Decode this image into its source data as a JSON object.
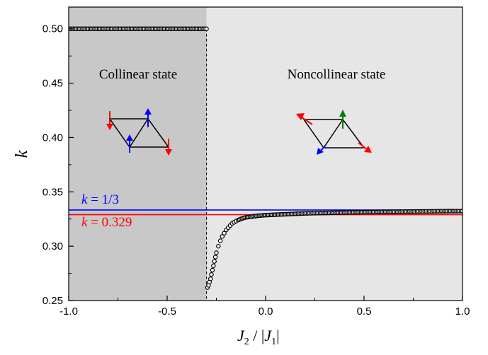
{
  "chart_data": {
    "type": "scatter",
    "title": "",
    "xlabel_main": "J",
    "xlabel_sub2": "2",
    "xlabel_mid": " / |",
    "xlabel_main2": "J",
    "xlabel_sub1": "1",
    "xlabel_end": "|",
    "ylabel": "k",
    "xlim": [
      -1.0,
      1.0
    ],
    "ylim": [
      0.25,
      0.52
    ],
    "xticks": [
      -1.0,
      -0.5,
      0.0,
      0.5,
      1.0
    ],
    "xtick_labels": [
      "-1.0",
      "-0.5",
      "0.0",
      "0.5",
      "1.0"
    ],
    "yticks": [
      0.25,
      0.3,
      0.35,
      0.4,
      0.45,
      0.5
    ],
    "ytick_labels": [
      "0.25",
      "0.30",
      "0.35",
      "0.40",
      "0.45",
      "0.50"
    ],
    "transition_x": -0.3,
    "regions": [
      {
        "label": "Collinear state",
        "x_from": -1.0,
        "x_to": -0.3,
        "color": "#c8c8c8"
      },
      {
        "label": "Noncollinear state",
        "x_from": -0.3,
        "x_to": 1.0,
        "color": "#e6e6e6"
      }
    ],
    "reference_lines": [
      {
        "label_k": "k",
        "label_rest": " = 1/3",
        "y": 0.3333,
        "color": "#0000ff"
      },
      {
        "label_k": "k",
        "label_rest": " = 0.329",
        "y": 0.329,
        "color": "#ff0000"
      }
    ],
    "series": [
      {
        "points": [
          [
            -1.0,
            0.5
          ],
          [
            -0.9,
            0.5
          ],
          [
            -0.8,
            0.5
          ],
          [
            -0.7,
            0.5
          ],
          [
            -0.6,
            0.5
          ],
          [
            -0.5,
            0.5
          ],
          [
            -0.4,
            0.5
          ],
          [
            -0.3,
            0.5
          ],
          [
            -0.295,
            0.262
          ],
          [
            -0.29,
            0.264
          ],
          [
            -0.285,
            0.267
          ],
          [
            -0.28,
            0.27
          ],
          [
            -0.275,
            0.274
          ],
          [
            -0.27,
            0.278
          ],
          [
            -0.265,
            0.282
          ],
          [
            -0.26,
            0.286
          ],
          [
            -0.255,
            0.29
          ],
          [
            -0.25,
            0.294
          ],
          [
            -0.24,
            0.3
          ],
          [
            -0.23,
            0.305
          ],
          [
            -0.22,
            0.309
          ],
          [
            -0.21,
            0.312
          ],
          [
            -0.2,
            0.315
          ],
          [
            -0.19,
            0.317
          ],
          [
            -0.18,
            0.319
          ],
          [
            -0.17,
            0.321
          ],
          [
            -0.16,
            0.322
          ],
          [
            -0.15,
            0.323
          ],
          [
            -0.14,
            0.324
          ],
          [
            -0.12,
            0.3255
          ],
          [
            -0.1,
            0.3265
          ],
          [
            -0.08,
            0.327
          ],
          [
            -0.06,
            0.3275
          ],
          [
            -0.04,
            0.328
          ],
          [
            -0.02,
            0.3283
          ],
          [
            0.0,
            0.3286
          ],
          [
            0.05,
            0.329
          ],
          [
            0.1,
            0.3294
          ],
          [
            0.15,
            0.3298
          ],
          [
            0.2,
            0.3302
          ],
          [
            0.3,
            0.3306
          ],
          [
            0.4,
            0.331
          ],
          [
            0.5,
            0.3313
          ],
          [
            0.6,
            0.3316
          ],
          [
            0.7,
            0.3318
          ],
          [
            0.8,
            0.332
          ],
          [
            0.9,
            0.3322
          ],
          [
            1.0,
            0.3323
          ]
        ]
      }
    ],
    "insets": [
      {
        "region": "collinear",
        "spin_colors": [
          "#ff0000",
          "#0000ff",
          "#0000ff",
          "#ff0000"
        ],
        "directions": [
          "down",
          "up",
          "up",
          "down"
        ]
      },
      {
        "region": "noncollinear",
        "spin_colors": [
          "#ff0000",
          "#008000",
          "#0000ff",
          "#ff0000"
        ],
        "directions": [
          "upper-left",
          "up",
          "lower-left",
          "lower-right"
        ]
      }
    ]
  }
}
